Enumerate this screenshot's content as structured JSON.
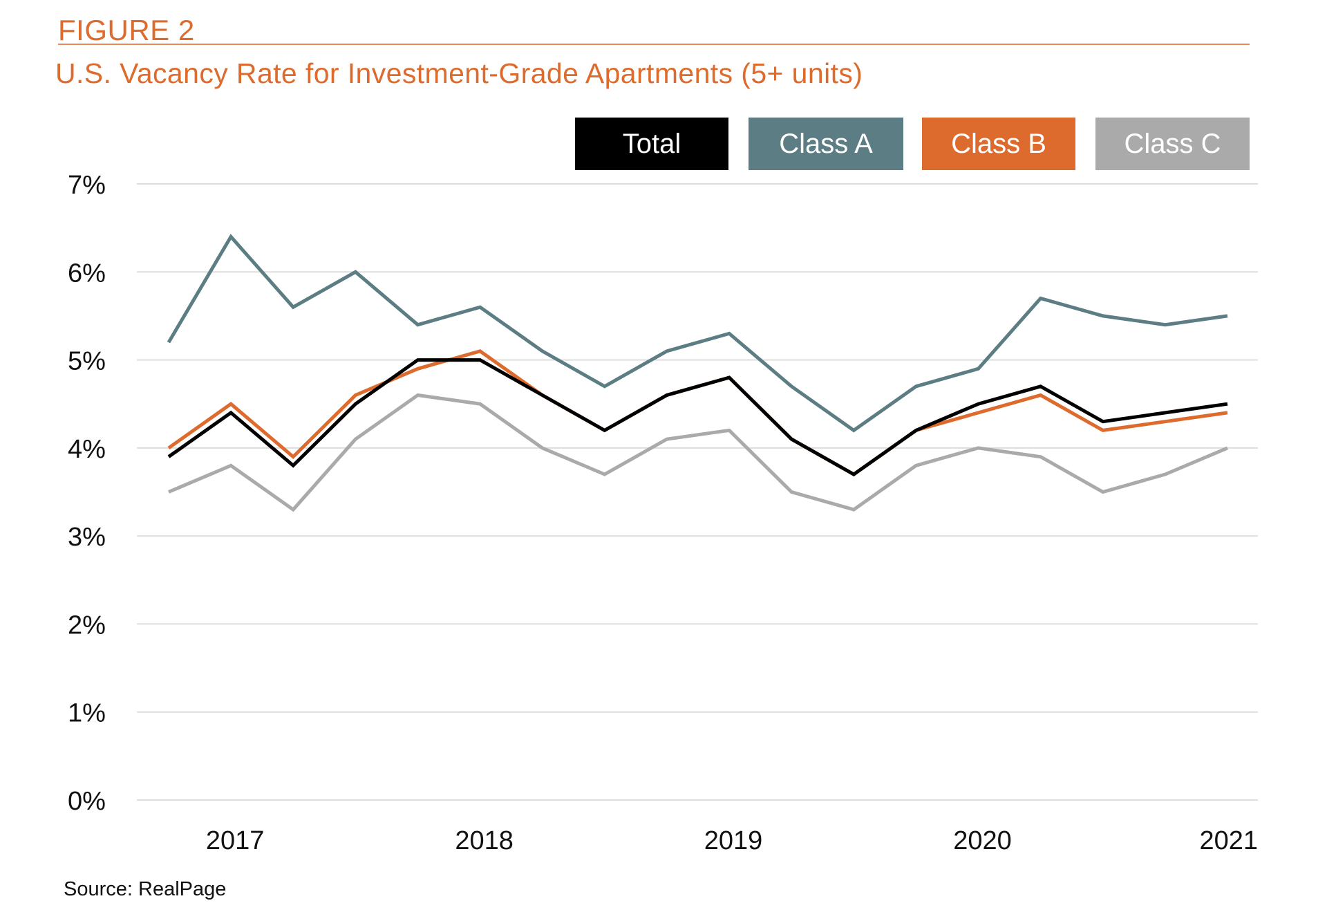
{
  "figure_label": "FIGURE 2",
  "source": "Source: RealPage",
  "chart_data": {
    "type": "line",
    "title": "U.S. Vacancy Rate for Investment-Grade Apartments (5+ units)",
    "xlabel": "",
    "ylabel": "",
    "ylim": [
      0,
      7
    ],
    "y_ticks": [
      "0%",
      "1%",
      "2%",
      "3%",
      "4%",
      "5%",
      "6%",
      "7%"
    ],
    "x_tick_labels": [
      {
        "label": "2017",
        "x": 2017
      },
      {
        "label": "2018",
        "x": 2018
      },
      {
        "label": "2019",
        "x": 2019
      },
      {
        "label": "2020",
        "x": 2020
      },
      {
        "label": "2021",
        "x": 2021
      }
    ],
    "xlim": [
      2016.75,
      2021
    ],
    "x": [
      2016.75,
      2017.0,
      2017.25,
      2017.5,
      2017.75,
      2018.0,
      2018.25,
      2018.5,
      2018.75,
      2019.0,
      2019.25,
      2019.5,
      2019.75,
      2020.0,
      2020.25,
      2020.5,
      2020.75,
      2021.0
    ],
    "grid": true,
    "legend_position": "top-right",
    "series": [
      {
        "name": "Total",
        "color": "#000000",
        "values": [
          3.9,
          4.4,
          3.8,
          4.5,
          5.0,
          5.0,
          4.6,
          4.2,
          4.6,
          4.8,
          4.1,
          3.7,
          4.2,
          4.5,
          4.7,
          4.3,
          4.4,
          4.5
        ]
      },
      {
        "name": "Class A",
        "color": "#5b7d83",
        "values": [
          5.2,
          6.4,
          5.6,
          6.0,
          5.4,
          5.6,
          5.1,
          4.7,
          5.1,
          5.3,
          4.7,
          4.2,
          4.7,
          4.9,
          5.7,
          5.5,
          5.4,
          5.5
        ]
      },
      {
        "name": "Class B",
        "color": "#dd6b2e",
        "values": [
          4.0,
          4.5,
          3.9,
          4.6,
          4.9,
          5.1,
          4.6,
          4.2,
          4.6,
          4.8,
          4.1,
          3.7,
          4.2,
          4.4,
          4.6,
          4.2,
          4.3,
          4.4
        ]
      },
      {
        "name": "Class C",
        "color": "#aaaaaa",
        "values": [
          3.5,
          3.8,
          3.3,
          4.1,
          4.6,
          4.5,
          4.0,
          3.7,
          4.1,
          4.2,
          3.5,
          3.3,
          3.8,
          4.0,
          3.9,
          3.5,
          3.7,
          4.0
        ]
      }
    ]
  }
}
